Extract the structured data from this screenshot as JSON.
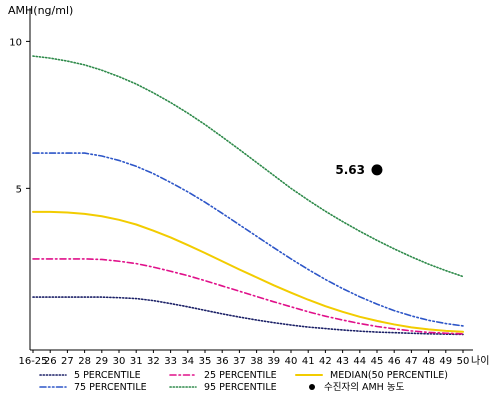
{
  "chart_data": {
    "type": "line",
    "ylabel": "AMH(ng/ml)",
    "xlabel": "나이",
    "categories": [
      "16-25",
      "26",
      "27",
      "28",
      "29",
      "30",
      "31",
      "32",
      "33",
      "34",
      "35",
      "36",
      "37",
      "38",
      "39",
      "40",
      "41",
      "42",
      "43",
      "44",
      "45",
      "46",
      "47",
      "48",
      "49",
      "50"
    ],
    "y_ticks": [
      5,
      10
    ],
    "ylim": [
      -0.5,
      11
    ],
    "grid": false,
    "series": [
      {
        "name": "5 PERCENTILE",
        "color": "#1a1f66",
        "dash": "dotted",
        "values": [
          1.3,
          1.3,
          1.3,
          1.3,
          1.3,
          1.28,
          1.25,
          1.18,
          1.08,
          0.97,
          0.85,
          0.73,
          0.62,
          0.52,
          0.43,
          0.35,
          0.28,
          0.23,
          0.18,
          0.14,
          0.11,
          0.09,
          0.07,
          0.05,
          0.04,
          0.03
        ]
      },
      {
        "name": "25 PERCENTILE",
        "color": "#e0108a",
        "dash": "dashdot",
        "values": [
          2.6,
          2.6,
          2.6,
          2.6,
          2.58,
          2.52,
          2.44,
          2.32,
          2.18,
          2.03,
          1.86,
          1.68,
          1.5,
          1.32,
          1.14,
          0.97,
          0.8,
          0.65,
          0.52,
          0.4,
          0.3,
          0.22,
          0.15,
          0.1,
          0.07,
          0.05
        ]
      },
      {
        "name": "MEDIAN(50 PERCENTILE)",
        "color": "#f2cc00",
        "dash": "solid",
        "values": [
          4.2,
          4.2,
          4.18,
          4.13,
          4.05,
          3.93,
          3.77,
          3.56,
          3.33,
          3.07,
          2.8,
          2.52,
          2.24,
          1.97,
          1.7,
          1.45,
          1.21,
          0.99,
          0.8,
          0.63,
          0.49,
          0.37,
          0.27,
          0.2,
          0.15,
          0.12
        ]
      },
      {
        "name": "75 PERCENTILE",
        "color": "#2d56c8",
        "dash": "dashdotdot",
        "values": [
          6.2,
          6.2,
          6.2,
          6.2,
          6.1,
          5.95,
          5.75,
          5.5,
          5.2,
          4.88,
          4.53,
          4.15,
          3.76,
          3.37,
          2.98,
          2.6,
          2.24,
          1.9,
          1.59,
          1.31,
          1.06,
          0.84,
          0.66,
          0.51,
          0.4,
          0.32
        ]
      },
      {
        "name": "95 PERCENTILE",
        "color": "#2e8a4a",
        "dash": "dotted",
        "values": [
          9.5,
          9.43,
          9.33,
          9.2,
          9.02,
          8.8,
          8.55,
          8.25,
          7.92,
          7.56,
          7.17,
          6.75,
          6.32,
          5.88,
          5.44,
          5.0,
          4.6,
          4.22,
          3.87,
          3.54,
          3.23,
          2.94,
          2.67,
          2.42,
          2.2,
          2.0
        ]
      }
    ],
    "annotation": {
      "label": "5.63",
      "x": "45",
      "y": 5.63,
      "legend": "수진자의 AMH 농도"
    },
    "legend_position": "bottom"
  }
}
